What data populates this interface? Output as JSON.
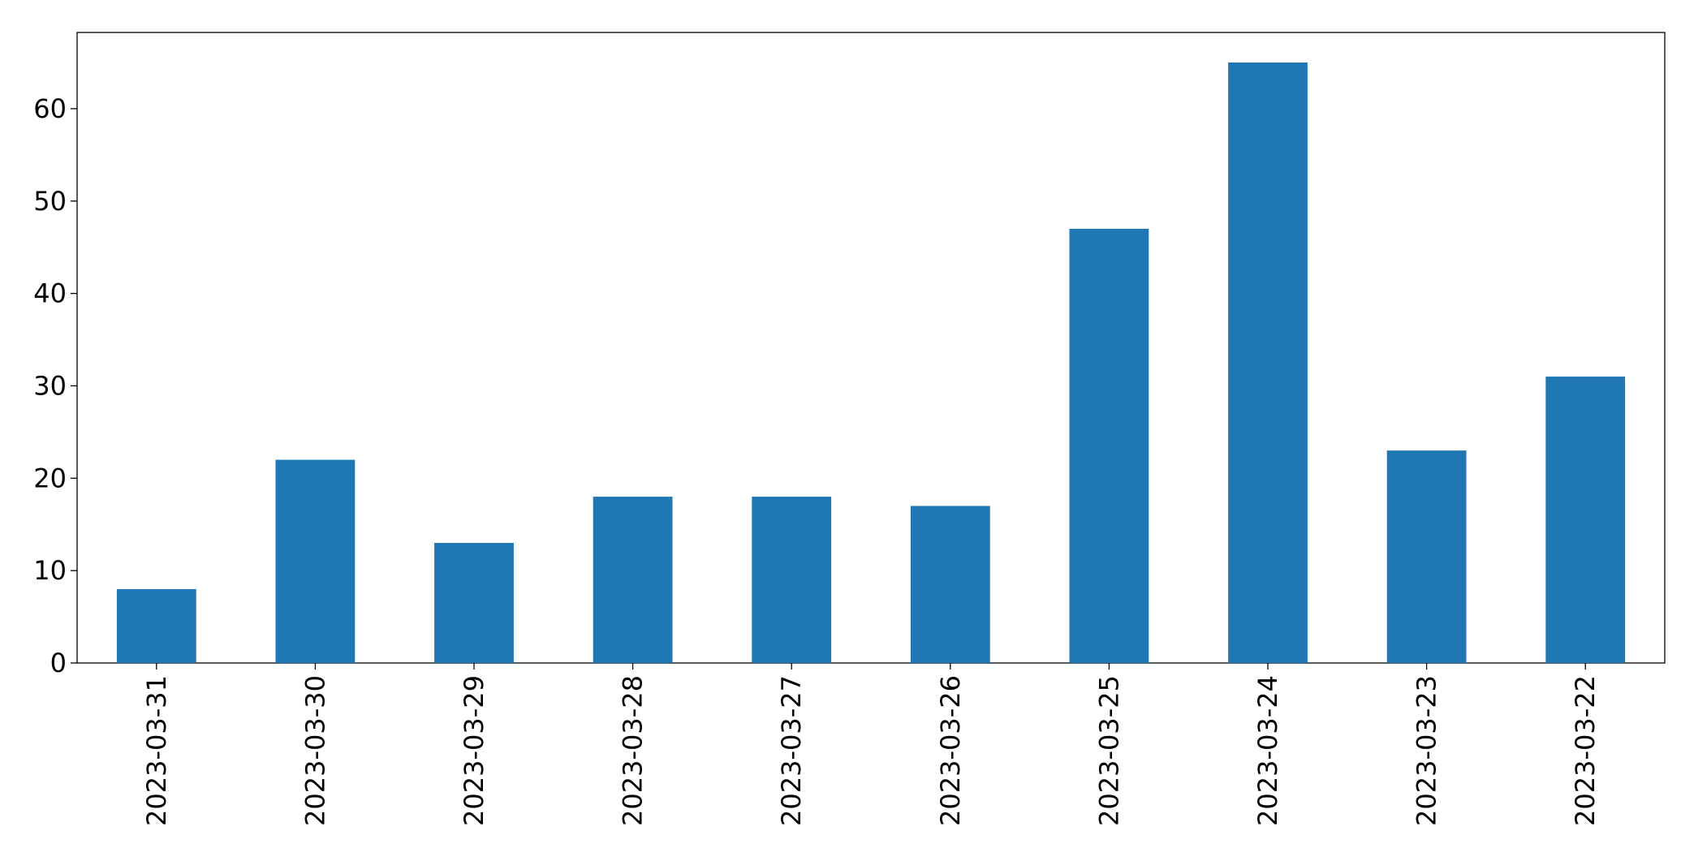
{
  "chart_data": {
    "type": "bar",
    "categories": [
      "2023-03-31",
      "2023-03-30",
      "2023-03-29",
      "2023-03-28",
      "2023-03-27",
      "2023-03-26",
      "2023-03-25",
      "2023-03-24",
      "2023-03-23",
      "2023-03-22"
    ],
    "values": [
      8,
      22,
      13,
      18,
      18,
      17,
      47,
      65,
      23,
      31
    ],
    "color": "#1f77b4",
    "ylim": [
      0,
      68.25
    ],
    "yticks": [
      0,
      10,
      20,
      30,
      40,
      50,
      60
    ],
    "grid": false
  }
}
